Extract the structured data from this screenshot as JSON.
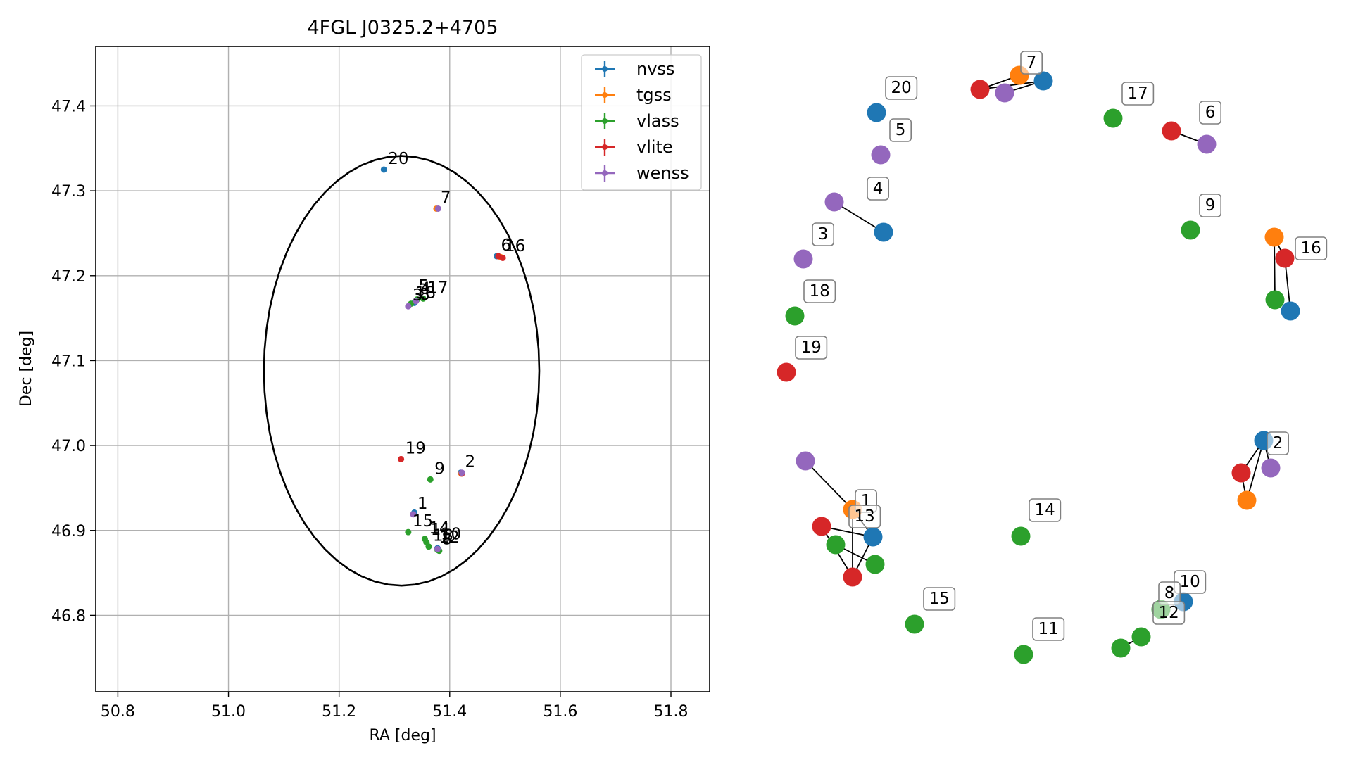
{
  "chart_data": [
    {
      "type": "scatter",
      "title": "4FGL J0325.2+4705",
      "xlabel": "RA [deg]",
      "ylabel": "Dec [deg]",
      "xlim": [
        50.76,
        51.87
      ],
      "ylim": [
        46.71,
        47.47
      ],
      "xticks": [
        "50.8",
        "51.0",
        "51.2",
        "51.4",
        "51.6",
        "51.8"
      ],
      "yticks": [
        "46.8",
        "46.9",
        "47.0",
        "47.1",
        "47.2",
        "47.3",
        "47.4"
      ],
      "grid": true,
      "legend_position": "top-right",
      "ellipse": {
        "center": [
          51.313,
          47.088
        ],
        "semi_axis_ra": 0.249,
        "semi_axis_dec": 0.253
      },
      "series": [
        {
          "name": "nvss",
          "color": "#1f77b4",
          "points": [
            {
              "x": 51.281,
              "y": 47.325
            },
            {
              "x": 51.485,
              "y": 47.223
            },
            {
              "x": 51.336,
              "y": 47.168
            },
            {
              "x": 51.42,
              "y": 46.968
            },
            {
              "x": 51.336,
              "y": 46.921
            },
            {
              "x": 51.378,
              "y": 46.879
            }
          ]
        },
        {
          "name": "tgss",
          "color": "#ff7f0e",
          "points": [
            {
              "x": 51.376,
              "y": 47.279
            },
            {
              "x": 51.492,
              "y": 47.222
            },
            {
              "x": 51.421,
              "y": 46.967
            }
          ]
        },
        {
          "name": "vlass",
          "color": "#2ca02c",
          "points": [
            {
              "x": 51.352,
              "y": 47.173
            },
            {
              "x": 51.33,
              "y": 47.167
            },
            {
              "x": 51.341,
              "y": 47.172
            },
            {
              "x": 51.365,
              "y": 46.96
            },
            {
              "x": 51.325,
              "y": 46.898
            },
            {
              "x": 51.355,
              "y": 46.89
            },
            {
              "x": 51.358,
              "y": 46.886
            },
            {
              "x": 51.362,
              "y": 46.881
            },
            {
              "x": 51.378,
              "y": 46.877
            },
            {
              "x": 51.381,
              "y": 46.876
            }
          ]
        },
        {
          "name": "vlite",
          "color": "#d62728",
          "points": [
            {
              "x": 51.488,
              "y": 47.223
            },
            {
              "x": 51.496,
              "y": 47.221
            },
            {
              "x": 51.312,
              "y": 46.984
            },
            {
              "x": 51.422,
              "y": 46.967
            }
          ]
        },
        {
          "name": "wenss",
          "color": "#9467bd",
          "points": [
            {
              "x": 51.379,
              "y": 47.279
            },
            {
              "x": 51.325,
              "y": 47.164
            },
            {
              "x": 51.339,
              "y": 47.17
            },
            {
              "x": 51.422,
              "y": 46.968
            },
            {
              "x": 51.334,
              "y": 46.919
            },
            {
              "x": 51.378,
              "y": 46.878
            }
          ]
        }
      ],
      "point_labels": [
        {
          "text": "20",
          "x": 51.281,
          "y": 47.325
        },
        {
          "text": "7",
          "x": 51.376,
          "y": 47.279
        },
        {
          "text": "6",
          "x": 51.485,
          "y": 47.223
        },
        {
          "text": "16",
          "x": 51.492,
          "y": 47.222
        },
        {
          "text": "17",
          "x": 51.352,
          "y": 47.173
        },
        {
          "text": "4",
          "x": 51.339,
          "y": 47.172
        },
        {
          "text": "5",
          "x": 51.336,
          "y": 47.175
        },
        {
          "text": "3",
          "x": 51.325,
          "y": 47.164
        },
        {
          "text": "18",
          "x": 51.33,
          "y": 47.167
        },
        {
          "text": "8",
          "x": 51.338,
          "y": 47.165
        },
        {
          "text": "19",
          "x": 51.312,
          "y": 46.984
        },
        {
          "text": "9",
          "x": 51.365,
          "y": 46.96
        },
        {
          "text": "2",
          "x": 51.42,
          "y": 46.968
        },
        {
          "text": "1",
          "x": 51.334,
          "y": 46.919
        },
        {
          "text": "15",
          "x": 51.325,
          "y": 46.898
        },
        {
          "text": "14",
          "x": 51.355,
          "y": 46.89
        },
        {
          "text": "11",
          "x": 51.358,
          "y": 46.888
        },
        {
          "text": "10",
          "x": 51.376,
          "y": 46.883
        },
        {
          "text": "12",
          "x": 51.373,
          "y": 46.879
        },
        {
          "text": "13",
          "x": 51.362,
          "y": 46.881
        },
        {
          "text": "8",
          "x": 51.378,
          "y": 46.877
        }
      ]
    },
    {
      "type": "diagram",
      "groups": [
        {
          "label": "20",
          "nodes": [
            "nvss"
          ]
        },
        {
          "label": "7",
          "nodes": [
            "vlite",
            "wenss",
            "tgss",
            "nvss"
          ]
        },
        {
          "label": "17",
          "nodes": [
            "vlass"
          ]
        },
        {
          "label": "6",
          "nodes": [
            "vlite",
            "wenss"
          ]
        },
        {
          "label": "5",
          "nodes": [
            "wenss"
          ]
        },
        {
          "label": "4",
          "nodes": [
            "wenss",
            "nvss"
          ]
        },
        {
          "label": "9",
          "nodes": [
            "vlass"
          ]
        },
        {
          "label": "3",
          "nodes": [
            "wenss"
          ]
        },
        {
          "label": "16",
          "nodes": [
            "tgss",
            "vlite",
            "vlass",
            "nvss"
          ]
        },
        {
          "label": "18",
          "nodes": [
            "vlass"
          ]
        },
        {
          "label": "19",
          "nodes": [
            "vlite"
          ]
        },
        {
          "label": "2",
          "nodes": [
            "nvss",
            "wenss",
            "vlite",
            "tgss"
          ]
        },
        {
          "label": "1",
          "nodes": [
            "wenss",
            "tgss",
            "vlite",
            "nvss",
            "vlite"
          ]
        },
        {
          "label": "13",
          "nodes": [
            "vlass",
            "vlass"
          ]
        },
        {
          "label": "14",
          "nodes": [
            "vlass"
          ]
        },
        {
          "label": "15",
          "nodes": [
            "vlass"
          ]
        },
        {
          "label": "10",
          "nodes": [
            "nvss"
          ]
        },
        {
          "label": "8",
          "nodes": [
            "vlass"
          ]
        },
        {
          "label": "12",
          "nodes": [
            "vlass",
            "vlass"
          ]
        },
        {
          "label": "11",
          "nodes": [
            "vlass"
          ]
        }
      ]
    }
  ]
}
